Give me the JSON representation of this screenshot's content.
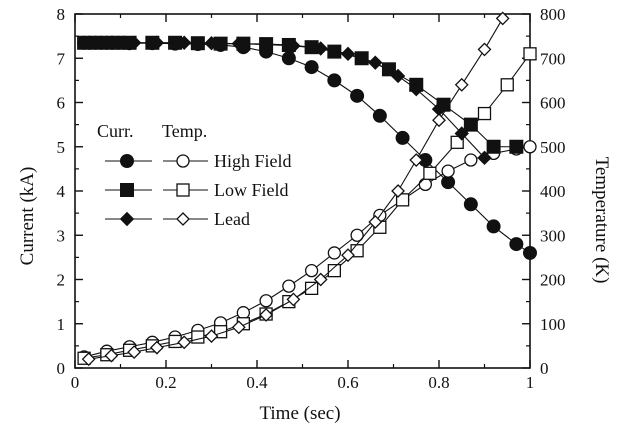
{
  "chart_data": {
    "type": "line",
    "xlabel": "Time (sec)",
    "ylabel_left": "Current (kA)",
    "ylabel_right": "Temperature (K)",
    "xlim": [
      0,
      1
    ],
    "ylim_left": [
      0,
      8
    ],
    "ylim_right": [
      0,
      800
    ],
    "x_ticks": [
      "0",
      "0.2",
      "0.4",
      "0.6",
      "0.8",
      "1"
    ],
    "y_left_ticks": [
      "0",
      "1",
      "2",
      "3",
      "4",
      "5",
      "6",
      "7",
      "8"
    ],
    "y_right_ticks": [
      "0",
      "100",
      "200",
      "300",
      "400",
      "500",
      "600",
      "700",
      "800"
    ],
    "grid": false,
    "legend": {
      "placement": "middle-left",
      "header_current": "Curr.",
      "header_temperature": "Temp.",
      "entries": [
        "High Field",
        "Low Field",
        "Lead"
      ]
    },
    "series": [
      {
        "name": "High Field",
        "quantity": "current",
        "axis": "left",
        "marker": "filled-circle",
        "x": [
          0.02,
          0.045,
          0.07,
          0.095,
          0.12,
          0.17,
          0.22,
          0.27,
          0.32,
          0.37,
          0.42,
          0.47,
          0.52,
          0.57,
          0.62,
          0.67,
          0.72,
          0.77,
          0.82,
          0.87,
          0.92,
          0.97,
          1.0
        ],
        "y": [
          7.35,
          7.35,
          7.35,
          7.35,
          7.34,
          7.34,
          7.33,
          7.32,
          7.3,
          7.25,
          7.15,
          7.0,
          6.8,
          6.5,
          6.15,
          5.7,
          5.2,
          4.7,
          4.2,
          3.7,
          3.2,
          2.8,
          2.6
        ]
      },
      {
        "name": "High Field",
        "quantity": "temperature",
        "axis": "right",
        "marker": "open-circle",
        "x": [
          0.02,
          0.07,
          0.12,
          0.17,
          0.22,
          0.27,
          0.32,
          0.37,
          0.42,
          0.47,
          0.52,
          0.57,
          0.62,
          0.67,
          0.72,
          0.77,
          0.82,
          0.87,
          0.92,
          0.97,
          1.0
        ],
        "y": [
          25,
          38,
          48,
          58,
          70,
          85,
          102,
          125,
          152,
          185,
          220,
          260,
          300,
          345,
          380,
          415,
          445,
          470,
          485,
          495,
          500
        ]
      },
      {
        "name": "Low Field",
        "quantity": "current",
        "axis": "left",
        "marker": "filled-square",
        "x": [
          0.02,
          0.045,
          0.07,
          0.095,
          0.12,
          0.17,
          0.22,
          0.27,
          0.32,
          0.37,
          0.42,
          0.47,
          0.52,
          0.57,
          0.63,
          0.69,
          0.75,
          0.81,
          0.87,
          0.92,
          0.97
        ],
        "y": [
          7.35,
          7.35,
          7.35,
          7.35,
          7.35,
          7.35,
          7.35,
          7.34,
          7.33,
          7.33,
          7.32,
          7.3,
          7.25,
          7.15,
          7.0,
          6.75,
          6.4,
          5.95,
          5.5,
          5.0,
          5.0
        ]
      },
      {
        "name": "Low Field",
        "quantity": "temperature",
        "axis": "right",
        "marker": "open-square",
        "x": [
          0.02,
          0.07,
          0.12,
          0.17,
          0.22,
          0.27,
          0.32,
          0.37,
          0.42,
          0.47,
          0.52,
          0.57,
          0.62,
          0.67,
          0.72,
          0.78,
          0.84,
          0.9,
          0.95,
          1.0
        ],
        "y": [
          22,
          30,
          40,
          50,
          60,
          70,
          82,
          100,
          122,
          150,
          180,
          220,
          265,
          318,
          380,
          440,
          510,
          575,
          640,
          710
        ]
      },
      {
        "name": "Lead",
        "quantity": "current",
        "axis": "left",
        "marker": "filled-diamond",
        "x": [
          0.03,
          0.08,
          0.13,
          0.18,
          0.24,
          0.3,
          0.36,
          0.42,
          0.48,
          0.54,
          0.6,
          0.66,
          0.71,
          0.75,
          0.8,
          0.85,
          0.9
        ],
        "y": [
          7.35,
          7.35,
          7.35,
          7.35,
          7.35,
          7.34,
          7.33,
          7.31,
          7.28,
          7.22,
          7.1,
          6.9,
          6.6,
          6.3,
          5.85,
          5.3,
          4.75
        ]
      },
      {
        "name": "Lead",
        "quantity": "temperature",
        "axis": "right",
        "marker": "open-diamond",
        "x": [
          0.03,
          0.08,
          0.13,
          0.18,
          0.24,
          0.3,
          0.36,
          0.42,
          0.48,
          0.54,
          0.6,
          0.66,
          0.71,
          0.75,
          0.8,
          0.85,
          0.9,
          0.94
        ],
        "y": [
          20,
          28,
          36,
          46,
          58,
          72,
          92,
          120,
          155,
          200,
          255,
          330,
          400,
          470,
          560,
          640,
          720,
          790
        ]
      }
    ]
  }
}
